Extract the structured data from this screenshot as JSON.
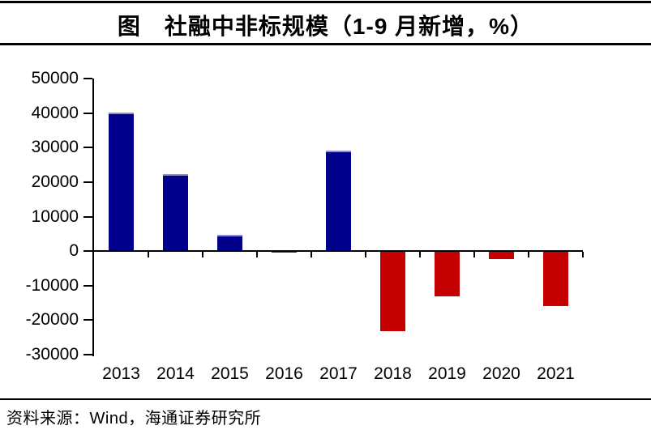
{
  "title": "图　社融中非标规模（1-9 月新增，%）",
  "source": "资料来源：Wind，海通证券研究所",
  "colors": {
    "positive_bar": "#00008B",
    "positive_bar_highlight": "#8F8FC8",
    "negative_bar": "#C40000",
    "axis": "#000000",
    "text": "#000000",
    "background": "#FFFFFF"
  },
  "chart_data": {
    "type": "bar",
    "title": "图 社融中非标规模（1-9 月新增，%）",
    "categories": [
      "2013",
      "2014",
      "2015",
      "2016",
      "2017",
      "2018",
      "2019",
      "2020",
      "2021"
    ],
    "values": [
      40200,
      22400,
      4700,
      -400,
      29200,
      -23300,
      -13200,
      -2200,
      -15900
    ],
    "xlabel": "",
    "ylabel": "",
    "ylim": [
      -30000,
      50000
    ],
    "yticks": [
      50000,
      40000,
      30000,
      20000,
      10000,
      0,
      -10000,
      -20000,
      -30000
    ],
    "grid": false,
    "legend": "none",
    "positive_color": "#00008B",
    "negative_color": "#C40000",
    "bar_color_rule": "positive values navy blue, negative values red"
  }
}
